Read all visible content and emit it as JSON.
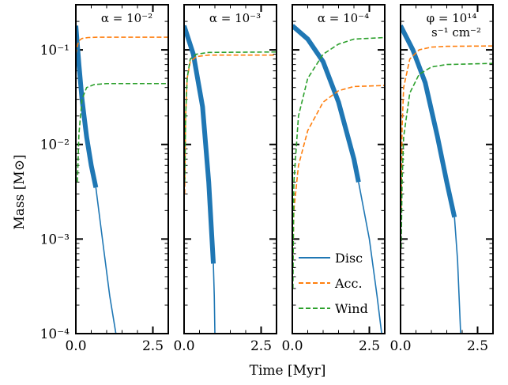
{
  "figure": {
    "xlabel": "Time [Myr]",
    "ylabel": "Mass [M⊙]"
  },
  "legend": {
    "placement": "lower-left of third panel",
    "entries": [
      {
        "label": "Disc",
        "color": "#1f77b4",
        "style": "solid"
      },
      {
        "label": "Acc.",
        "color": "#ff7f0e",
        "style": "dashed"
      },
      {
        "label": "Wind",
        "color": "#2ca02c",
        "style": "dashed"
      }
    ]
  },
  "chart_data": [
    {
      "type": "line",
      "title": "α = 10⁻²",
      "xlim": [
        0,
        3
      ],
      "ylim": [
        0.0001,
        0.3
      ],
      "yscale": "log",
      "xticks": [
        "0.0",
        "2.5"
      ],
      "yticks": [
        "10⁻⁴",
        "10⁻³",
        "10⁻²",
        "10⁻¹"
      ],
      "series": [
        {
          "name": "Disc",
          "color": "#1f77b4",
          "x": [
            0.0,
            0.1,
            0.2,
            0.35,
            0.5,
            0.65
          ],
          "y": [
            0.18,
            0.07,
            0.03,
            0.012,
            0.006,
            0.0035
          ],
          "thick_until": 0.65
        },
        {
          "name": "Disc",
          "color": "#1f77b4",
          "x": [
            0.65,
            0.9,
            1.1,
            1.3
          ],
          "y": [
            0.0035,
            0.0008,
            0.00025,
            0.0001
          ]
        },
        {
          "name": "Acc.",
          "color": "#ff7f0e",
          "x": [
            0.0,
            0.05,
            0.1,
            0.2,
            0.4,
            0.7,
            3.0
          ],
          "y": [
            0.09,
            0.11,
            0.125,
            0.132,
            0.135,
            0.136,
            0.136
          ]
        },
        {
          "name": "Wind",
          "color": "#2ca02c",
          "x": [
            0.05,
            0.1,
            0.2,
            0.35,
            0.6,
            1.0,
            3.0
          ],
          "y": [
            0.004,
            0.013,
            0.03,
            0.04,
            0.043,
            0.044,
            0.044
          ]
        }
      ]
    },
    {
      "type": "line",
      "title": "α = 10⁻³",
      "xlim": [
        0,
        3
      ],
      "ylim": [
        0.0001,
        0.3
      ],
      "yscale": "log",
      "xticks": [
        "0.0",
        "2.5"
      ],
      "yticks": [],
      "series": [
        {
          "name": "Disc",
          "color": "#1f77b4",
          "x": [
            0.0,
            0.3,
            0.6,
            0.8,
            0.95
          ],
          "y": [
            0.18,
            0.09,
            0.025,
            0.004,
            0.00055
          ],
          "thick_until": 0.95
        },
        {
          "name": "Disc",
          "color": "#1f77b4",
          "x": [
            0.95,
            0.98,
            1.0
          ],
          "y": [
            0.00055,
            0.00025,
            0.0001
          ]
        },
        {
          "name": "Acc.",
          "color": "#ff7f0e",
          "x": [
            0.02,
            0.05,
            0.1,
            0.2,
            0.4,
            0.8,
            3.0
          ],
          "y": [
            0.003,
            0.02,
            0.05,
            0.075,
            0.085,
            0.088,
            0.088
          ]
        },
        {
          "name": "Wind",
          "color": "#2ca02c",
          "x": [
            0.02,
            0.05,
            0.1,
            0.2,
            0.4,
            0.8,
            3.0
          ],
          "y": [
            0.004,
            0.02,
            0.05,
            0.08,
            0.09,
            0.094,
            0.095
          ]
        }
      ]
    },
    {
      "type": "line",
      "title": "α = 10⁻⁴",
      "xlim": [
        0,
        3
      ],
      "ylim": [
        0.0001,
        0.3
      ],
      "yscale": "log",
      "xticks": [
        "0.0",
        "2.5"
      ],
      "yticks": [],
      "series": [
        {
          "name": "Disc",
          "color": "#1f77b4",
          "x": [
            0.0,
            0.5,
            1.0,
            1.5,
            2.0,
            2.15
          ],
          "y": [
            0.18,
            0.13,
            0.075,
            0.028,
            0.007,
            0.004
          ],
          "thick_until": 2.15
        },
        {
          "name": "Disc",
          "color": "#1f77b4",
          "x": [
            2.15,
            2.5,
            2.75,
            2.9
          ],
          "y": [
            0.004,
            0.001,
            0.00025,
            0.0001
          ]
        },
        {
          "name": "Acc.",
          "color": "#ff7f0e",
          "x": [
            0.02,
            0.05,
            0.2,
            0.5,
            1.0,
            1.5,
            2.0,
            3.0
          ],
          "y": [
            0.0006,
            0.002,
            0.006,
            0.014,
            0.028,
            0.037,
            0.041,
            0.042
          ]
        },
        {
          "name": "Wind",
          "color": "#2ca02c",
          "x": [
            0.02,
            0.05,
            0.2,
            0.5,
            1.0,
            1.5,
            2.0,
            3.0
          ],
          "y": [
            0.0003,
            0.004,
            0.02,
            0.05,
            0.09,
            0.115,
            0.13,
            0.135
          ]
        }
      ]
    },
    {
      "type": "line",
      "title": "φ = 10¹⁴ s⁻¹ cm⁻²",
      "xlim": [
        0,
        3
      ],
      "ylim": [
        0.0001,
        0.3
      ],
      "yscale": "log",
      "xticks": [
        "0.0",
        "2.5"
      ],
      "yticks": [],
      "series": [
        {
          "name": "Disc",
          "color": "#1f77b4",
          "x": [
            0.0,
            0.4,
            0.8,
            1.2,
            1.5,
            1.75
          ],
          "y": [
            0.18,
            0.1,
            0.045,
            0.012,
            0.004,
            0.0017
          ],
          "thick_until": 1.75
        },
        {
          "name": "Disc",
          "color": "#1f77b4",
          "x": [
            1.75,
            1.85,
            1.95
          ],
          "y": [
            0.0017,
            0.0006,
            0.0001
          ]
        },
        {
          "name": "Acc.",
          "color": "#ff7f0e",
          "x": [
            0.02,
            0.05,
            0.1,
            0.3,
            0.6,
            1.0,
            1.5,
            3.0
          ],
          "y": [
            0.002,
            0.015,
            0.04,
            0.08,
            0.1,
            0.107,
            0.109,
            0.11
          ]
        },
        {
          "name": "Wind",
          "color": "#2ca02c",
          "x": [
            0.02,
            0.05,
            0.1,
            0.3,
            0.6,
            1.0,
            1.5,
            3.0
          ],
          "y": [
            0.0008,
            0.004,
            0.012,
            0.035,
            0.055,
            0.066,
            0.07,
            0.072
          ]
        }
      ]
    }
  ]
}
